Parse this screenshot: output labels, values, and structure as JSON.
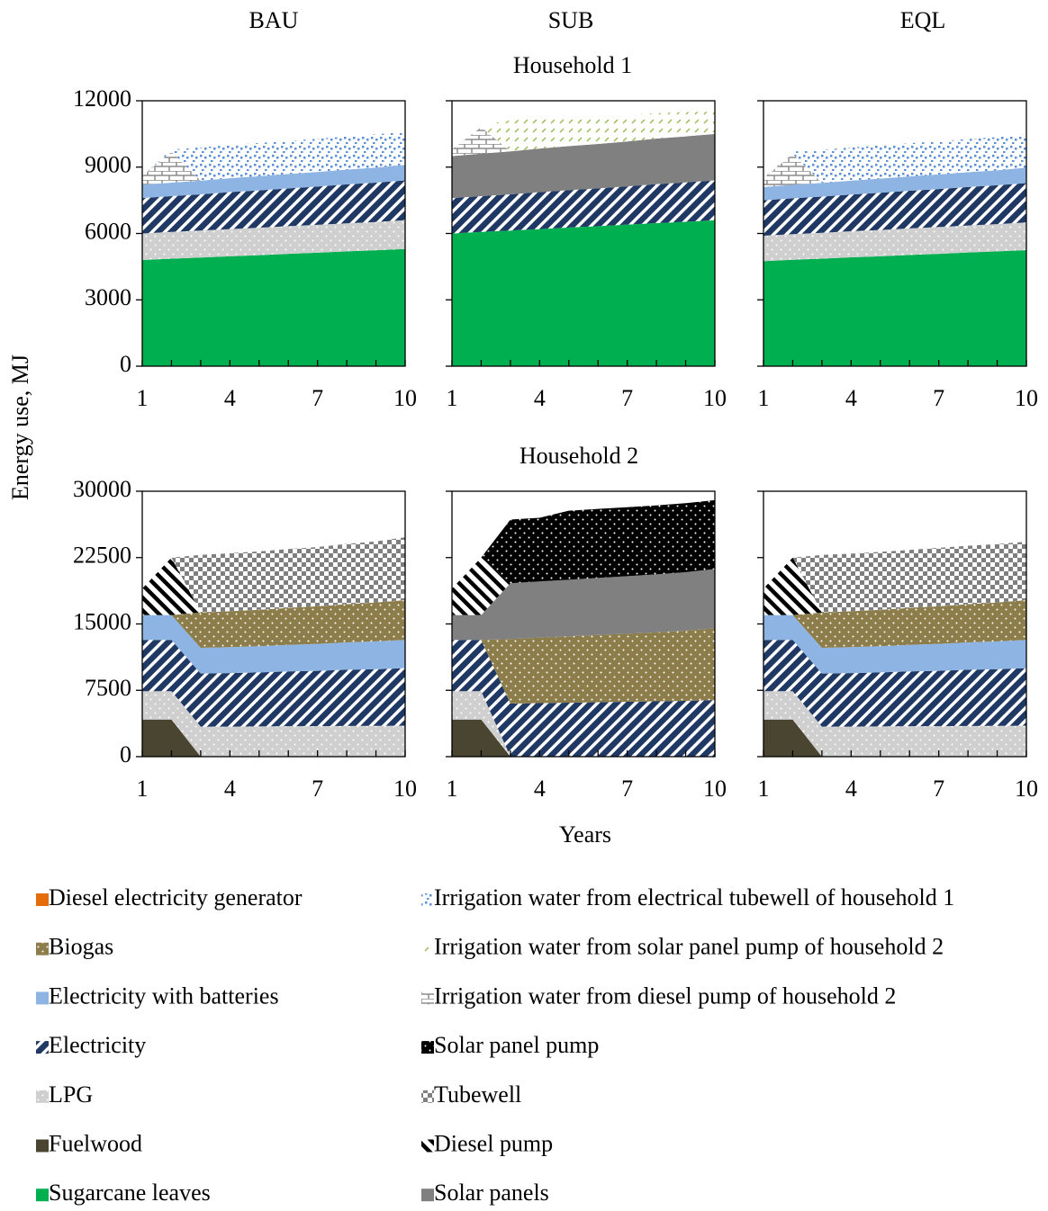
{
  "column_titles": [
    "BAU",
    "SUB",
    "EQL"
  ],
  "row_titles": [
    "Household 1",
    "Household 2"
  ],
  "y_label": "Energy use, MJ",
  "x_label": "Years",
  "legend": [
    {
      "name": "Diesel electricity generator",
      "color": "#e46c0a",
      "pattern": "solid"
    },
    {
      "name": "Biogas",
      "color": "#8c7d4b",
      "pattern": "dots"
    },
    {
      "name": "Electricity with batteries",
      "color": "#8eb4e3",
      "pattern": "solid"
    },
    {
      "name": "Electricity",
      "color": "#1f3864",
      "pattern": "stripes"
    },
    {
      "name": "LPG",
      "color": "#cfcfcf",
      "pattern": "dots"
    },
    {
      "name": "Fuelwood",
      "color": "#4a4530",
      "pattern": "solid"
    },
    {
      "name": "Sugarcane leaves",
      "color": "#00b050",
      "pattern": "solid"
    },
    {
      "name": "Irrigation water from electrical tubewell of household 1",
      "color": "#5b8fd6",
      "pattern": "spots"
    },
    {
      "name": "Irrigation water from solar panel pump of household 2",
      "color": "#9bbb59",
      "pattern": "dashes"
    },
    {
      "name": "Irrigation water from diesel pump of household 2",
      "color": "#8c8c8c",
      "pattern": "bricks"
    },
    {
      "name": "Solar panel pump",
      "color": "#000000",
      "pattern": "dots"
    },
    {
      "name": "Tubewell",
      "color": "#7f7f7f",
      "pattern": "checker"
    },
    {
      "name": "Diesel pump",
      "color": "#000000",
      "pattern": "hatch"
    },
    {
      "name": "Solar panels",
      "color": "#808080",
      "pattern": "solid"
    }
  ],
  "chart_data": [
    {
      "type": "area",
      "stacked": true,
      "x": [
        1,
        2,
        3,
        4,
        5,
        6,
        7,
        8,
        9,
        10
      ],
      "xlim": [
        1,
        10
      ],
      "xticks": [
        1,
        4,
        7,
        10
      ],
      "ylim": [
        0,
        12000
      ],
      "yticks": [
        0,
        3000,
        6000,
        9000,
        12000
      ],
      "series": [
        {
          "name": "Sugarcane leaves",
          "values": [
            4800,
            4860,
            4910,
            4970,
            5020,
            5080,
            5130,
            5190,
            5240,
            5300
          ]
        },
        {
          "name": "LPG",
          "values": [
            1200,
            1210,
            1220,
            1230,
            1240,
            1250,
            1260,
            1270,
            1280,
            1300
          ]
        },
        {
          "name": "Electricity",
          "values": [
            1600,
            1620,
            1640,
            1670,
            1690,
            1710,
            1730,
            1760,
            1780,
            1800
          ]
        },
        {
          "name": "Electricity with batteries",
          "values": [
            600,
            610,
            620,
            630,
            640,
            650,
            660,
            670,
            680,
            700
          ]
        },
        {
          "name": "Irrigation water from diesel pump of household 2",
          "values": [
            400,
            1400,
            0,
            0,
            0,
            0,
            0,
            0,
            0,
            0
          ]
        },
        {
          "name": "Irrigation water from electrical tubewell of household 1",
          "values": [
            0,
            100,
            1500,
            1500,
            1500,
            1500,
            1500,
            1500,
            1500,
            1500
          ]
        }
      ]
    },
    {
      "type": "area",
      "stacked": true,
      "x": [
        1,
        2,
        3,
        4,
        5,
        6,
        7,
        8,
        9,
        10
      ],
      "xlim": [
        1,
        10
      ],
      "xticks": [
        1,
        4,
        7,
        10
      ],
      "ylim": [
        0,
        12000
      ],
      "yticks": [
        0,
        3000,
        6000,
        9000,
        12000
      ],
      "series": [
        {
          "name": "Sugarcane leaves",
          "values": [
            6000,
            6070,
            6130,
            6200,
            6270,
            6330,
            6400,
            6470,
            6530,
            6600
          ]
        },
        {
          "name": "Electricity",
          "values": [
            1600,
            1620,
            1640,
            1670,
            1690,
            1710,
            1730,
            1760,
            1780,
            1800
          ]
        },
        {
          "name": "Solar panels",
          "values": [
            1900,
            1920,
            1940,
            1970,
            1990,
            2010,
            2030,
            2060,
            2080,
            2100
          ]
        },
        {
          "name": "Irrigation water from diesel pump of household 2",
          "values": [
            300,
            1200,
            0,
            0,
            0,
            0,
            0,
            0,
            0,
            0
          ]
        },
        {
          "name": "Irrigation water from solar panel pump of household 2",
          "values": [
            0,
            100,
            1400,
            1350,
            1300,
            1250,
            1200,
            1150,
            1100,
            1000
          ]
        }
      ]
    },
    {
      "type": "area",
      "stacked": true,
      "x": [
        1,
        2,
        3,
        4,
        5,
        6,
        7,
        8,
        9,
        10
      ],
      "xlim": [
        1,
        10
      ],
      "xticks": [
        1,
        4,
        7,
        10
      ],
      "ylim": [
        0,
        12000
      ],
      "yticks": [
        0,
        3000,
        6000,
        9000,
        12000
      ],
      "series": [
        {
          "name": "Sugarcane leaves",
          "values": [
            4750,
            4810,
            4860,
            4920,
            4970,
            5030,
            5080,
            5140,
            5190,
            5250
          ]
        },
        {
          "name": "LPG",
          "values": [
            1150,
            1160,
            1170,
            1180,
            1190,
            1200,
            1210,
            1220,
            1230,
            1250
          ]
        },
        {
          "name": "Electricity",
          "values": [
            1600,
            1620,
            1640,
            1660,
            1680,
            1700,
            1720,
            1740,
            1760,
            1780
          ]
        },
        {
          "name": "Electricity with batteries",
          "values": [
            600,
            610,
            620,
            630,
            640,
            650,
            660,
            670,
            680,
            700
          ]
        },
        {
          "name": "Irrigation water from diesel pump of household 2",
          "values": [
            400,
            1400,
            0,
            0,
            0,
            0,
            0,
            0,
            0,
            0
          ]
        },
        {
          "name": "Irrigation water from electrical tubewell of household 1",
          "values": [
            0,
            100,
            1500,
            1500,
            1500,
            1500,
            1500,
            1500,
            1500,
            1500
          ]
        }
      ]
    },
    {
      "type": "area",
      "stacked": true,
      "x": [
        1,
        2,
        3,
        4,
        5,
        6,
        7,
        8,
        9,
        10
      ],
      "xlim": [
        1,
        10
      ],
      "xticks": [
        1,
        4,
        7,
        10
      ],
      "ylim": [
        0,
        30000
      ],
      "yticks": [
        0,
        7500,
        15000,
        22500,
        30000
      ],
      "series": [
        {
          "name": "Fuelwood",
          "values": [
            4200,
            4200,
            0,
            0,
            0,
            0,
            0,
            0,
            0,
            0
          ]
        },
        {
          "name": "LPG",
          "values": [
            3200,
            3200,
            3400,
            3400,
            3420,
            3440,
            3450,
            3470,
            3480,
            3500
          ]
        },
        {
          "name": "Electricity",
          "values": [
            5800,
            5800,
            6000,
            6050,
            6100,
            6200,
            6250,
            6350,
            6400,
            6500
          ]
        },
        {
          "name": "Electricity with batteries",
          "values": [
            2800,
            2800,
            2900,
            2930,
            2960,
            3000,
            3050,
            3100,
            3150,
            3200
          ]
        },
        {
          "name": "Biogas",
          "values": [
            0,
            0,
            4000,
            4060,
            4120,
            4180,
            4250,
            4320,
            4400,
            4500
          ]
        },
        {
          "name": "Diesel pump",
          "values": [
            3000,
            6500,
            0,
            0,
            0,
            0,
            0,
            0,
            0,
            0
          ]
        },
        {
          "name": "Tubewell",
          "values": [
            0,
            0,
            6500,
            6550,
            6600,
            6650,
            6700,
            6800,
            6900,
            7100
          ]
        }
      ]
    },
    {
      "type": "area",
      "stacked": true,
      "x": [
        1,
        2,
        3,
        4,
        5,
        6,
        7,
        8,
        9,
        10
      ],
      "xlim": [
        1,
        10
      ],
      "xticks": [
        1,
        4,
        7,
        10
      ],
      "ylim": [
        0,
        30000
      ],
      "yticks": [
        0,
        7500,
        15000,
        22500,
        30000
      ],
      "series": [
        {
          "name": "Fuelwood",
          "values": [
            4200,
            4200,
            0,
            0,
            0,
            0,
            0,
            0,
            0,
            0
          ]
        },
        {
          "name": "LPG",
          "values": [
            3200,
            3200,
            0,
            0,
            0,
            0,
            0,
            0,
            0,
            0
          ]
        },
        {
          "name": "Electricity",
          "values": [
            5800,
            5800,
            6000,
            6050,
            6100,
            6150,
            6200,
            6250,
            6300,
            6400
          ]
        },
        {
          "name": "Biogas",
          "values": [
            0,
            0,
            7300,
            7400,
            7500,
            7600,
            7700,
            7800,
            7950,
            8100
          ]
        },
        {
          "name": "Solar panels",
          "values": [
            2800,
            2800,
            6300,
            6350,
            6400,
            6450,
            6500,
            6550,
            6600,
            6700
          ]
        },
        {
          "name": "Diesel pump",
          "values": [
            3000,
            6500,
            0,
            0,
            0,
            0,
            0,
            0,
            0,
            0
          ]
        },
        {
          "name": "Solar panel pump",
          "values": [
            0,
            0,
            7200,
            7200,
            7800,
            7800,
            7800,
            7800,
            7800,
            7800
          ]
        }
      ]
    },
    {
      "type": "area",
      "stacked": true,
      "x": [
        1,
        2,
        3,
        4,
        5,
        6,
        7,
        8,
        9,
        10
      ],
      "xlim": [
        1,
        10
      ],
      "xticks": [
        1,
        4,
        7,
        10
      ],
      "ylim": [
        0,
        30000
      ],
      "yticks": [
        0,
        7500,
        15000,
        22500,
        30000
      ],
      "series": [
        {
          "name": "Fuelwood",
          "values": [
            4200,
            4200,
            0,
            0,
            0,
            0,
            0,
            0,
            0,
            0
          ]
        },
        {
          "name": "LPG",
          "values": [
            3200,
            3200,
            3400,
            3400,
            3420,
            3440,
            3450,
            3470,
            3480,
            3500
          ]
        },
        {
          "name": "Electricity",
          "values": [
            5800,
            5800,
            6000,
            6050,
            6100,
            6200,
            6250,
            6350,
            6400,
            6500
          ]
        },
        {
          "name": "Electricity with batteries",
          "values": [
            2800,
            2800,
            2900,
            2930,
            2960,
            3000,
            3050,
            3100,
            3150,
            3200
          ]
        },
        {
          "name": "Biogas",
          "values": [
            0,
            0,
            4000,
            4060,
            4120,
            4180,
            4250,
            4320,
            4400,
            4500
          ]
        },
        {
          "name": "Diesel pump",
          "values": [
            3000,
            6500,
            0,
            0,
            0,
            0,
            0,
            0,
            0,
            0
          ]
        },
        {
          "name": "Tubewell",
          "values": [
            0,
            0,
            6500,
            6500,
            6550,
            6550,
            6600,
            6600,
            6600,
            6600
          ]
        }
      ]
    }
  ]
}
